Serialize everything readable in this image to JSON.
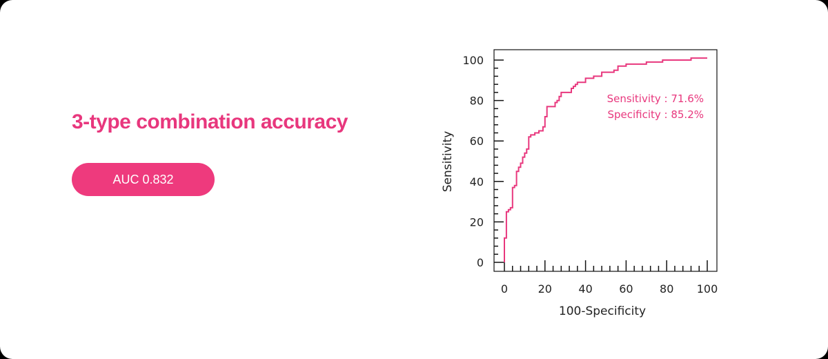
{
  "title": "3-type combination accuracy",
  "auc_badge": "AUC 0.832",
  "colors": {
    "accent": "#e8377d",
    "badge_bg": "#ee3a7d",
    "axis": "#111111"
  },
  "chart_data": {
    "type": "line",
    "xlabel": "100-Specificity",
    "ylabel": "Sensitivity",
    "xlim": [
      0,
      100
    ],
    "ylim": [
      0,
      100
    ],
    "x_ticks": [
      0,
      20,
      40,
      60,
      80,
      100
    ],
    "y_ticks": [
      0,
      20,
      40,
      60,
      80,
      100
    ],
    "grid": false,
    "annotations": [
      "Sensitivity : 71.6%",
      "Specificity : 85.2%"
    ],
    "series": [
      {
        "x": [
          0,
          0,
          1,
          1,
          2,
          2,
          3,
          3,
          4,
          4,
          5,
          5,
          6,
          6,
          7,
          7,
          8,
          8,
          9,
          9,
          10,
          10,
          11,
          11,
          12,
          12,
          13,
          13,
          15,
          15,
          17,
          17,
          19,
          19,
          20,
          20,
          21,
          21,
          25,
          25,
          26,
          26,
          27,
          27,
          28,
          28,
          33,
          33,
          34,
          34,
          35,
          35,
          36,
          36,
          40,
          40,
          44,
          44,
          48,
          48,
          54,
          54,
          56,
          56,
          60,
          60,
          70,
          70,
          78,
          78,
          92,
          92,
          100
        ],
        "y": [
          0,
          12,
          12,
          25,
          25,
          26,
          26,
          27,
          27,
          37,
          37,
          38,
          38,
          45,
          45,
          47,
          47,
          49,
          49,
          52,
          52,
          54,
          54,
          56,
          56,
          62,
          62,
          63,
          63,
          64,
          64,
          65,
          65,
          67,
          67,
          72,
          72,
          77,
          77,
          79,
          79,
          80,
          80,
          82,
          82,
          84,
          84,
          86,
          86,
          87,
          87,
          88,
          88,
          89,
          89,
          91,
          91,
          92,
          92,
          94,
          94,
          95,
          95,
          97,
          97,
          98,
          98,
          99,
          99,
          100,
          100,
          101,
          101
        ]
      }
    ]
  }
}
